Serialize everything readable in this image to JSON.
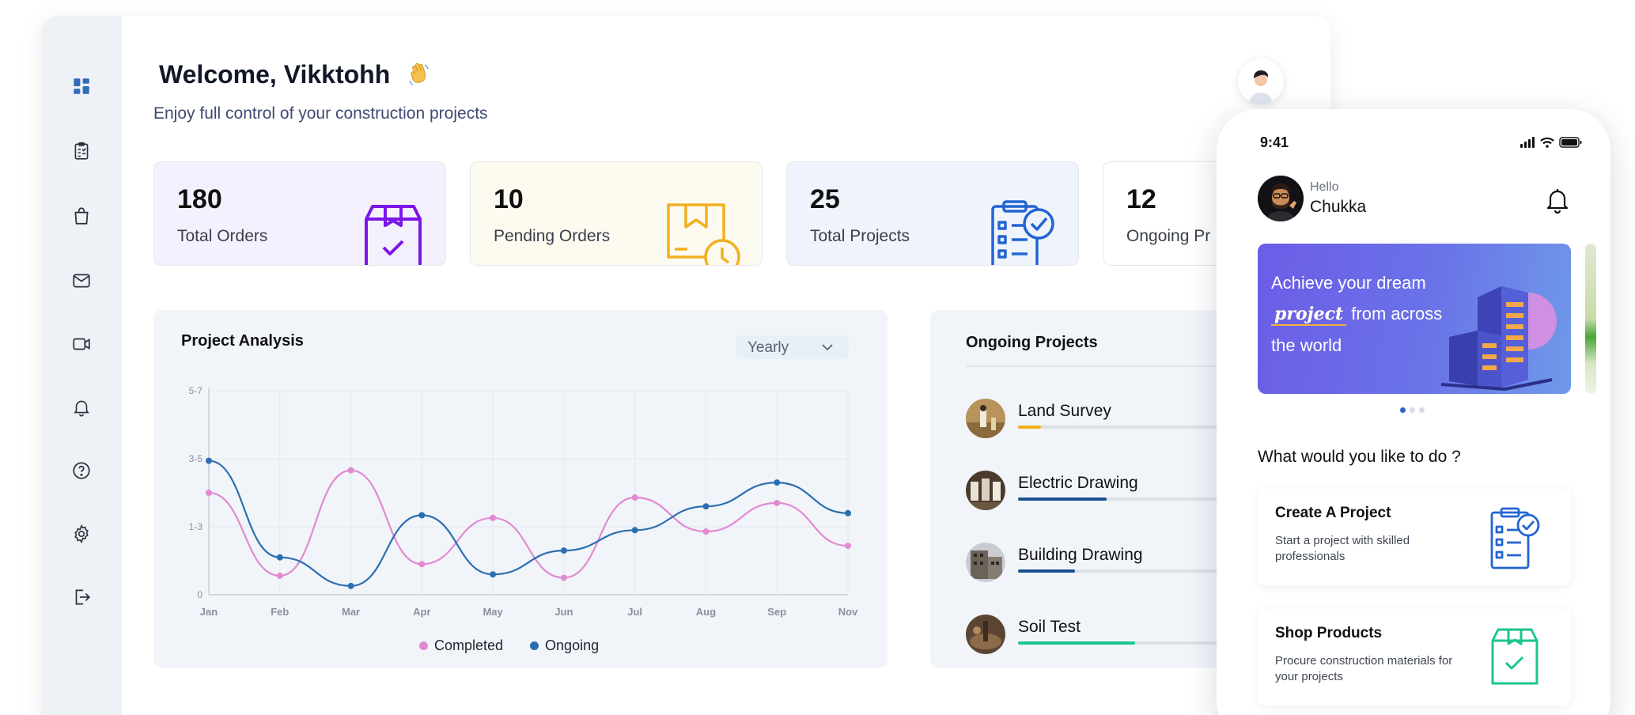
{
  "desktop": {
    "welcome": "Welcome, Vikktohh",
    "subtitle": "Enjoy full control of your construction projects",
    "sidebar": [
      "dashboard-icon",
      "clipboard-icon",
      "shopping-bag-icon",
      "mail-icon",
      "video-icon",
      "bell-icon",
      "help-icon",
      "settings-icon",
      "logout-icon"
    ],
    "stats": [
      {
        "value": "180",
        "label": "Total Orders",
        "bg": "#f5f0fd",
        "icon": "box-check-icon",
        "icon_color": "#7b16e8"
      },
      {
        "value": "10",
        "label": "Pending Orders",
        "bg": "#fdfaf0",
        "icon": "box-clock-icon",
        "icon_color": "#f2b01f"
      },
      {
        "value": "25",
        "label": "Total Projects",
        "bg": "#eef3fc",
        "icon": "clipboard-check-icon",
        "icon_color": "#2364d2"
      },
      {
        "value": "12",
        "label": "Ongoing Pr",
        "bg": "#ffffff",
        "icon": "",
        "icon_color": ""
      }
    ],
    "chart_panel": {
      "title": "Project Analysis",
      "period": "Yearly",
      "legend": [
        {
          "name": "Completed",
          "color": "#e28ad0"
        },
        {
          "name": "Ongoing",
          "color": "#2c6fb0"
        }
      ]
    },
    "ongoing": {
      "title": "Ongoing Projects",
      "projects": [
        {
          "name": "Land Survey",
          "progress": 0.08,
          "color": "#f2b01f"
        },
        {
          "name": "Electric Drawing",
          "progress": 0.31,
          "color": "#174f8e"
        },
        {
          "name": "Building Drawing",
          "progress": 0.2,
          "color": "#174f8e"
        },
        {
          "name": "Soil Test",
          "progress": 0.41,
          "color": "#1cc58e"
        }
      ]
    }
  },
  "chart_data": {
    "type": "line",
    "title": "Project Analysis",
    "xlabel": "",
    "ylabel": "",
    "categories": [
      "Jan",
      "Feb",
      "Mar",
      "Apr",
      "May",
      "Jun",
      "Jul",
      "Aug",
      "Sep",
      "Nov"
    ],
    "y_tick_labels": [
      "0",
      "1-3",
      "3-5",
      "5-7"
    ],
    "ylim": [
      0,
      3
    ],
    "grid": true,
    "legend_position": "bottom",
    "series": [
      {
        "name": "Completed",
        "color": "#e28ad0",
        "values": [
          1.5,
          0.28,
          1.83,
          0.45,
          1.13,
          0.25,
          1.43,
          0.93,
          1.35,
          0.72
        ]
      },
      {
        "name": "Ongoing",
        "color": "#2c6fb0",
        "values": [
          1.97,
          0.55,
          0.13,
          1.17,
          0.3,
          0.65,
          0.95,
          1.3,
          1.65,
          1.2
        ]
      }
    ]
  },
  "mobile": {
    "time": "9:41",
    "greeting_small": "Hello",
    "greeting_name": "Chukka",
    "banner": {
      "line1": "Achieve your dream",
      "highlight": "project",
      "line2_rest": " from across",
      "line3": "the world"
    },
    "question": "What would you like to do ?",
    "actions": [
      {
        "title": "Create A Project",
        "desc": "Start a project with skilled professionals",
        "icon": "clipboard-check-icon",
        "color": "#2364d2"
      },
      {
        "title": "Shop Products",
        "desc": "Procure construction materials for your projects",
        "icon": "box-check-icon",
        "color": "#1cc58e"
      }
    ]
  }
}
